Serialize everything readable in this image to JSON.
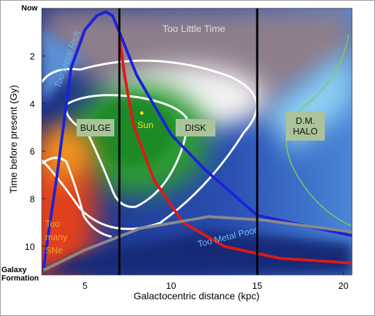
{
  "chart_data": {
    "type": "line",
    "xlabel": "Galactocentric distance (kpc)",
    "ylabel": "Time before present (Gy)",
    "xlim": [
      2.5,
      20.5
    ],
    "xticks": [
      5,
      10,
      15,
      20
    ],
    "ylim": [
      0,
      11.2
    ],
    "y_inverted": true,
    "yticks": [
      {
        "value": 0,
        "label": "Now"
      },
      2,
      4,
      6,
      8,
      10,
      {
        "value": 11,
        "label": "Galaxy Formation"
      }
    ],
    "vlines": [
      7,
      15
    ],
    "series": [
      {
        "color": "#1a22d8",
        "x": [
          2.6,
          3.4,
          4.2,
          5,
          5.7,
          6.2,
          6.6,
          7,
          8,
          10,
          12,
          15,
          20.5
        ],
        "values": [
          10.9,
          6.9,
          2.5,
          0.9,
          0.3,
          0.15,
          0.3,
          1.0,
          2.8,
          5.3,
          6.8,
          8.7,
          9.55
        ]
      },
      {
        "color": "#e01818",
        "x": [
          7,
          7.3,
          7.8,
          9,
          10.7,
          13.1,
          16.3,
          20.5
        ],
        "values": [
          1.2,
          2.8,
          4.85,
          7.2,
          9.0,
          10.0,
          10.5,
          10.7
        ]
      },
      {
        "color": "#8a8a8a",
        "x": [
          2.6,
          5,
          8.2,
          12.2,
          15.4,
          20.5
        ],
        "values": [
          11.0,
          10.15,
          9.25,
          8.75,
          8.9,
          9.4
        ]
      }
    ],
    "sun": {
      "x": 8.3,
      "y": 4.4
    },
    "annotations": [
      "Too Metal Rich",
      "Too Little Time",
      "BULGE",
      "Sun",
      "DISK",
      "D.M. HALO",
      "Too many SNe",
      "Too Metal Poor"
    ]
  }
}
